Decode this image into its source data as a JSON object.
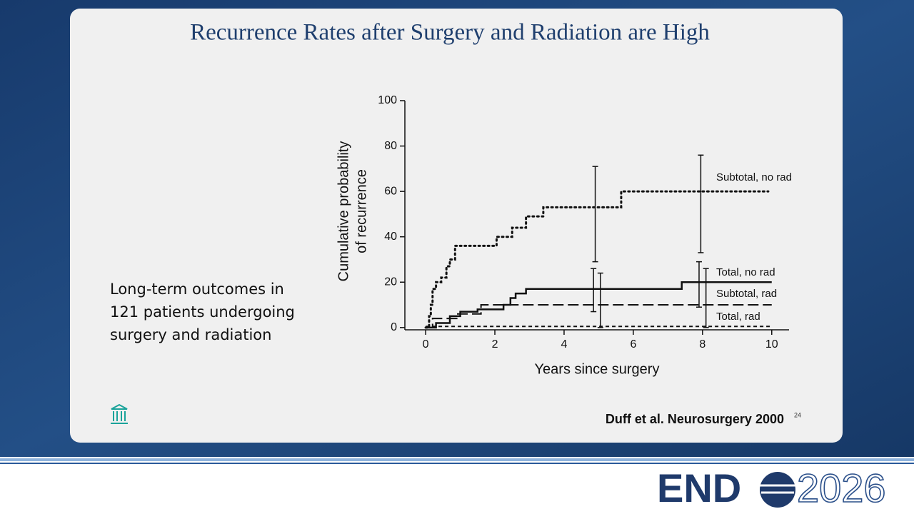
{
  "slide": {
    "title": "Recurrence Rates after Surgery and Radiation are High",
    "body_lines": [
      "Long-term outcomes in",
      "121 patients undergoing",
      "surgery and radiation"
    ],
    "citation": "Duff et al. Neurosurgery 2000",
    "page_number": "24",
    "logo_left": "END",
    "logo_right": "2026"
  },
  "chart_data": {
    "type": "step-line",
    "x_label": "Years since surgery",
    "y_label": [
      "Cumulative probability",
      "of recurrence"
    ],
    "xlim": [
      -0.6,
      10.5
    ],
    "ylim": [
      -1,
      100
    ],
    "xticks": [
      0,
      2,
      4,
      6,
      8,
      10
    ],
    "yticks": [
      0,
      20,
      40,
      60,
      80,
      100
    ],
    "series": [
      {
        "name": "Subtotal, no rad",
        "color": "#111111",
        "style": "dotted",
        "x": [
          0,
          0.1,
          0.15,
          0.2,
          0.3,
          0.45,
          0.6,
          0.7,
          0.85,
          2.05,
          2.5,
          2.9,
          3.4,
          5.65,
          9.9
        ],
        "values": [
          0,
          5,
          10,
          17,
          20,
          22,
          27,
          30,
          36,
          40,
          44,
          49,
          53,
          60,
          60
        ]
      },
      {
        "name": "Total, no rad",
        "color": "#111111",
        "style": "solid",
        "x": [
          0,
          0.3,
          0.7,
          1.0,
          1.5,
          2.25,
          2.45,
          2.6,
          2.9,
          7.4,
          10
        ],
        "values": [
          0,
          2,
          5,
          7,
          8,
          10,
          13,
          15,
          17,
          20,
          20
        ]
      },
      {
        "name": "Subtotal, rad",
        "color": "#111111",
        "style": "long-dash",
        "x": [
          0,
          0.2,
          0.9,
          1.6,
          10
        ],
        "values": [
          0,
          4,
          6,
          10,
          10
        ]
      },
      {
        "name": "Total, rad",
        "color": "#111111",
        "style": "short-dash",
        "x": [
          0,
          10
        ],
        "values": [
          0.5,
          0.5
        ]
      }
    ],
    "error_bars": [
      {
        "x": 4.9,
        "low": 29,
        "high": 71
      },
      {
        "x": 4.85,
        "low": 7,
        "high": 26
      },
      {
        "x": 5.05,
        "low": 0,
        "high": 24
      },
      {
        "x": 7.95,
        "low": 33,
        "high": 76
      },
      {
        "x": 7.9,
        "low": 9,
        "high": 29
      },
      {
        "x": 8.1,
        "low": 0,
        "high": 26
      }
    ]
  }
}
